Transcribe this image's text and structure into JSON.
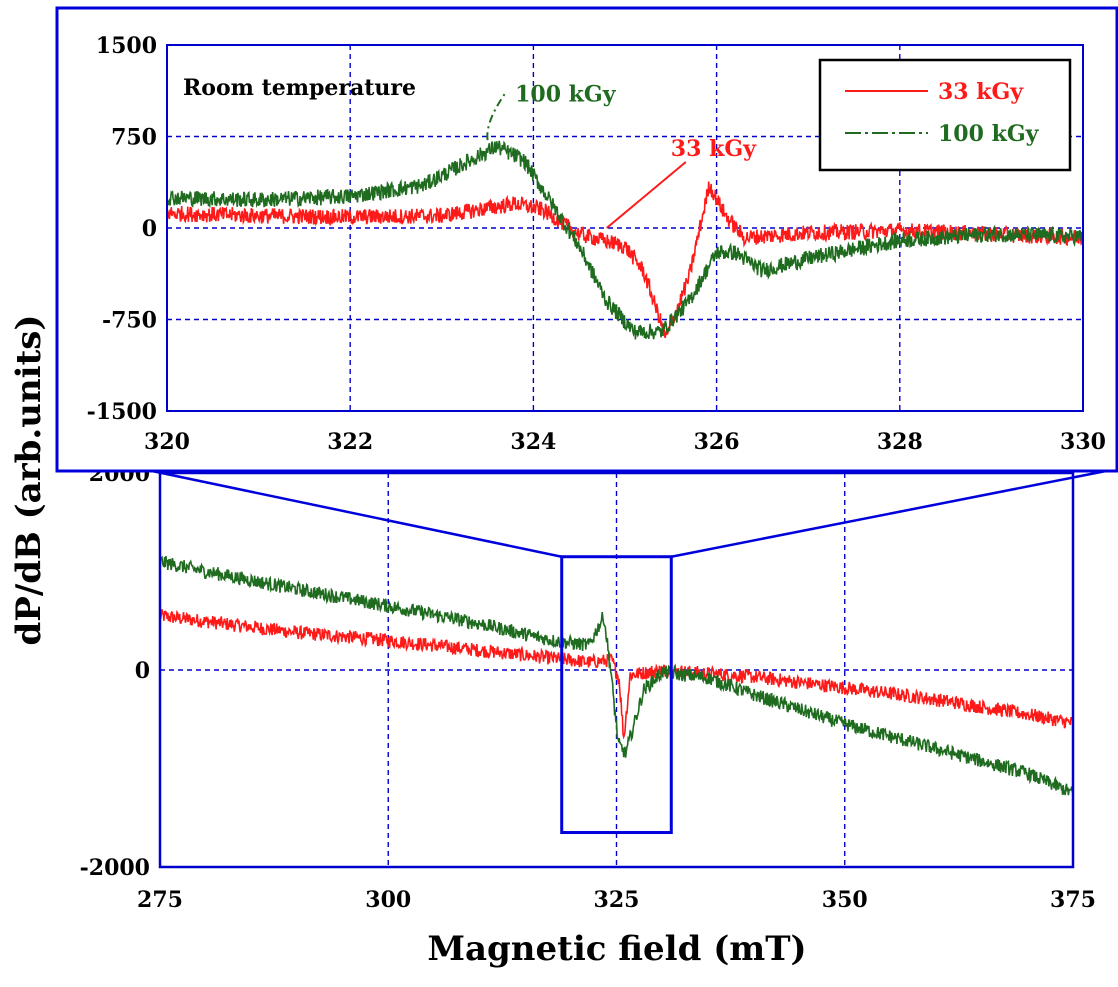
{
  "chart_data": [
    {
      "type": "line",
      "panel": "main",
      "xlabel": "Magnetic field (mT)",
      "ylabel": "dP/dB (arb.units)",
      "xlim": [
        275,
        375
      ],
      "ylim": [
        -2000,
        2000
      ],
      "xticks": [
        275,
        300,
        325,
        350,
        375
      ],
      "yticks": [
        -2000,
        0,
        2000
      ],
      "ytick_labels": [
        "-2000",
        "0",
        "2000"
      ],
      "grid": true,
      "zoom_box": {
        "x": [
          319,
          331
        ],
        "y": [
          -1650,
          1150
        ]
      },
      "series": [
        {
          "name": "33 kGy",
          "color": "#ff1a1a",
          "x": [
            275,
            290,
            300,
            310,
            318,
            322,
            324.5,
            325.3,
            325.8,
            326.5,
            330,
            340,
            350,
            360,
            370,
            375
          ],
          "y": [
            550,
            380,
            300,
            200,
            120,
            80,
            100,
            -100,
            -700,
            -50,
            0,
            -70,
            -180,
            -300,
            -450,
            -540
          ]
        },
        {
          "name": "100 kGy",
          "color": "#1f6b1f",
          "x": [
            275,
            280,
            290,
            300,
            310,
            318,
            322,
            323.6,
            324.3,
            325.2,
            326,
            328,
            330,
            335,
            340,
            350,
            360,
            370,
            375
          ],
          "y": [
            1100,
            1000,
            820,
            650,
            470,
            300,
            250,
            550,
            50,
            -750,
            -850,
            -200,
            -20,
            -80,
            -250,
            -550,
            -800,
            -1050,
            -1250
          ]
        }
      ]
    },
    {
      "type": "line",
      "panel": "inset",
      "title": "Room temperature",
      "xlim": [
        320,
        330
      ],
      "ylim": [
        -1500,
        1500
      ],
      "xticks": [
        320,
        322,
        324,
        326,
        328,
        330
      ],
      "yticks": [
        -1500,
        -750,
        0,
        750,
        1500
      ],
      "ytick_labels": [
        "-1500",
        "-750",
        "0",
        "750",
        "1500"
      ],
      "grid": true,
      "legend": "top-right",
      "annotations": [
        {
          "text": "100 kGy",
          "color": "#1f6b1f",
          "x": 323.8,
          "y": 1070,
          "points_to": [
            323.5,
            720
          ]
        },
        {
          "text": "33 kGy",
          "color": "#ff1a1a",
          "x": 325.5,
          "y": 590,
          "points_to": [
            324.8,
            0
          ]
        }
      ],
      "series": [
        {
          "name": "33 kGy",
          "color": "#ff1a1a",
          "x": [
            320,
            321,
            322,
            323,
            323.8,
            324.1,
            324.5,
            325,
            325.2,
            325.45,
            325.7,
            325.92,
            326.1,
            326.3,
            327,
            328,
            329,
            330
          ],
          "y": [
            120,
            100,
            90,
            100,
            200,
            150,
            -50,
            -150,
            -350,
            -900,
            -400,
            350,
            100,
            -80,
            -40,
            -20,
            -50,
            -80
          ]
        },
        {
          "name": "100 kGy",
          "color": "#1f6b1f",
          "x": [
            320,
            321,
            322,
            322.8,
            323.3,
            323.6,
            323.9,
            324.2,
            324.5,
            324.8,
            325.1,
            325.4,
            325.7,
            326,
            326.2,
            326.5,
            327,
            328,
            329,
            330
          ],
          "y": [
            250,
            230,
            260,
            350,
            550,
            670,
            550,
            200,
            -150,
            -600,
            -850,
            -850,
            -600,
            -200,
            -200,
            -350,
            -250,
            -100,
            -50,
            -70
          ]
        }
      ]
    }
  ]
}
